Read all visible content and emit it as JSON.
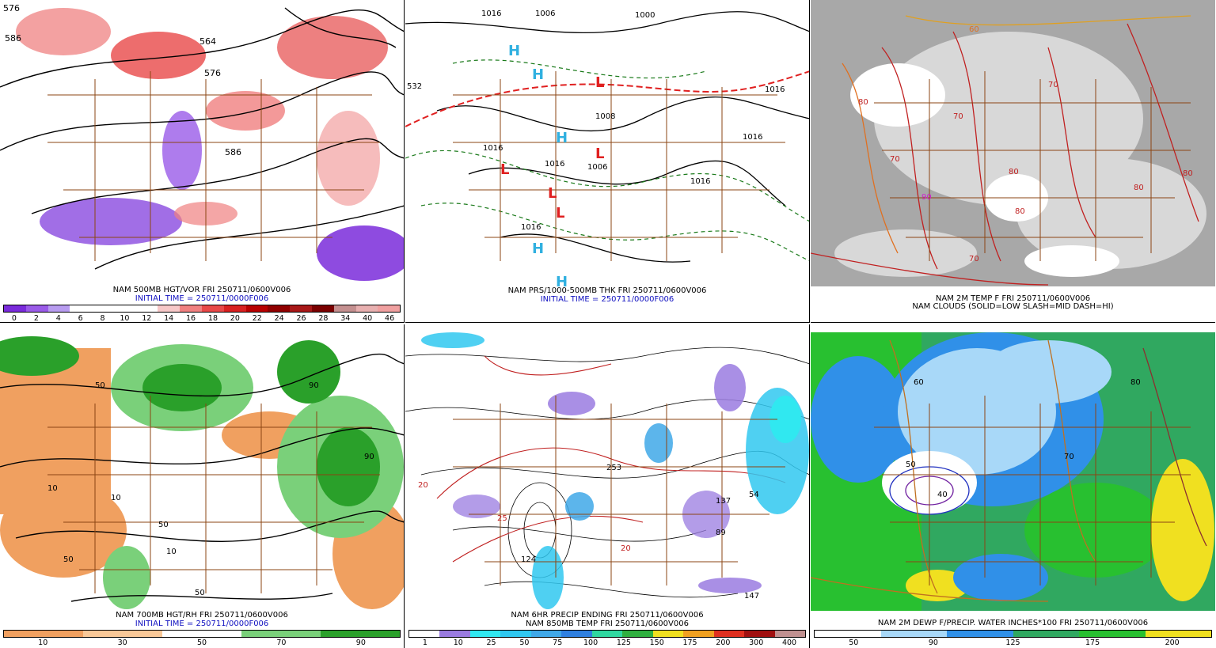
{
  "panels": [
    {
      "id": "p1",
      "caption1": "NAM 500MB HGT/VOR FRI 250711/0600V006",
      "caption2": "INITIAL TIME = 250711/0000F006",
      "ticks": [
        "0",
        "2",
        "4",
        "6",
        "8",
        "10",
        "12",
        "14",
        "16",
        "18",
        "20",
        "22",
        "24",
        "26",
        "28",
        "34",
        "40",
        "46"
      ],
      "colors": [
        "#7a2bdb",
        "#9a5be8",
        "#b89cf0",
        "#ffffff",
        "#ffffff",
        "#ffffff",
        "#ffffff",
        "#f7c8c8",
        "#f08080",
        "#e84848",
        "#d82020",
        "#b80000",
        "#900000",
        "#a81818",
        "#7a0000",
        "#c49090",
        "#e8b0b0",
        "#f0a0a0"
      ],
      "labels": [
        "576",
        "586",
        "564",
        "576",
        "586"
      ]
    },
    {
      "id": "p2",
      "caption1": "NAM PRS/1000-500MB THK FRI 250711/0600V006",
      "caption2": "INITIAL TIME = 250711/0000F006",
      "labels": [
        "1016",
        "1006",
        "1000",
        "1016",
        "1006",
        "1016",
        "1016",
        "1016",
        "1008",
        "1016",
        "1016",
        "532"
      ]
    },
    {
      "id": "p3",
      "caption1": "NAM 2M TEMP F FRI 250711/0600V006",
      "caption2": "NAM CLOUDS (SOLID=LOW SLASH=MID DASH=HI)",
      "labels": [
        "80",
        "70",
        "80",
        "70",
        "90",
        "80",
        "70",
        "80",
        "80",
        "60",
        "70"
      ]
    },
    {
      "id": "p4",
      "caption1": "NAM 700MB HGT/RH FRI 250711/0600V006",
      "caption2": "INITIAL TIME = 250711/0000F006",
      "ticks": [
        "10",
        "30",
        "50",
        "70",
        "90"
      ],
      "colors": [
        "#f0a060",
        "#f8c898",
        "#ffffff",
        "#7ad07a",
        "#2aa02a"
      ],
      "labels": [
        "50",
        "10",
        "90",
        "50",
        "10",
        "90",
        "50",
        "10",
        "50"
      ]
    },
    {
      "id": "p5",
      "caption1": "NAM 6HR PRECIP ENDING FRI 250711/0600V006",
      "caption2": "NAM 850MB TEMP FRI 250711/0600V006",
      "ticks": [
        "1",
        "10",
        "25",
        "50",
        "75",
        "100",
        "125",
        "150",
        "175",
        "200",
        "300",
        "400"
      ],
      "colors": [
        "#ffffff",
        "#9a7be0",
        "#30e8f0",
        "#30c8f0",
        "#40a8e8",
        "#3080e0",
        "#30d8a0",
        "#30b040",
        "#f0e020",
        "#f0a020",
        "#e03020",
        "#a01010",
        "#c09090"
      ],
      "labels": [
        "20",
        "25",
        "253",
        "137",
        "89",
        "54",
        "147",
        "124",
        "20"
      ]
    },
    {
      "id": "p6",
      "caption1": "NAM 2M DEWP F/PRECIP. WATER INCHES*100 FRI 250711/0600V006",
      "ticks": [
        "50",
        "90",
        "125",
        "175",
        "200"
      ],
      "colors": [
        "#ffffff",
        "#a8d8f8",
        "#3090e8",
        "#30a860",
        "#28c030",
        "#f0e020"
      ],
      "labels": [
        "60",
        "70",
        "80",
        "50",
        "40"
      ]
    }
  ]
}
